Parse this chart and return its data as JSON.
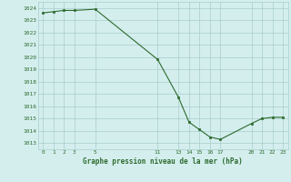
{
  "x": [
    0,
    1,
    2,
    3,
    5,
    11,
    13,
    14,
    15,
    16,
    17,
    20,
    21,
    22,
    23
  ],
  "y": [
    1023.6,
    1023.7,
    1023.8,
    1023.8,
    1023.9,
    1019.8,
    1016.7,
    1014.7,
    1014.1,
    1013.5,
    1013.3,
    1014.6,
    1015.0,
    1015.1,
    1015.1
  ],
  "xticks": [
    0,
    1,
    2,
    3,
    5,
    11,
    13,
    14,
    15,
    16,
    17,
    20,
    21,
    22,
    23
  ],
  "yticks": [
    1013,
    1014,
    1015,
    1016,
    1017,
    1018,
    1019,
    1020,
    1021,
    1022,
    1023,
    1024
  ],
  "ylim": [
    1012.5,
    1024.5
  ],
  "xlim": [
    -0.5,
    23.5
  ],
  "line_color": "#2d6b2d",
  "marker_color": "#2d6b2d",
  "bg_color": "#d4eeee",
  "grid_color": "#aacccc",
  "xlabel": "Graphe pression niveau de la mer (hPa)",
  "xlabel_color": "#2d6b2d",
  "tick_color": "#2d6b2d"
}
